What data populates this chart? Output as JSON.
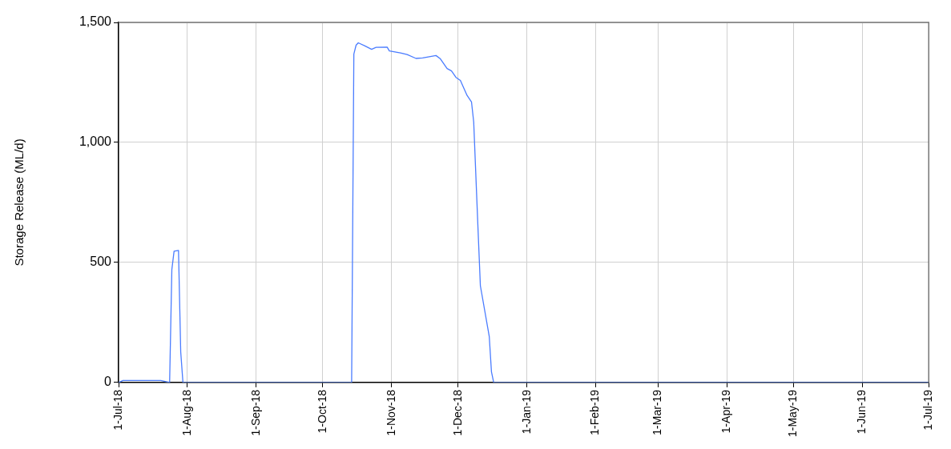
{
  "chart_data": {
    "type": "line",
    "ylabel": "Storage Release (ML/d)",
    "x": [
      "2018-07-01",
      "2018-07-03",
      "2018-07-20",
      "2018-07-24",
      "2018-07-25",
      "2018-07-26",
      "2018-07-28",
      "2018-07-29",
      "2018-07-30",
      "2018-10-14",
      "2018-10-15",
      "2018-10-16",
      "2018-10-17",
      "2018-10-20",
      "2018-10-23",
      "2018-10-25",
      "2018-10-30",
      "2018-10-31",
      "2018-11-05",
      "2018-11-08",
      "2018-11-12",
      "2018-11-15",
      "2018-11-21",
      "2018-11-23",
      "2018-11-26",
      "2018-11-28",
      "2018-11-30",
      "2018-12-02",
      "2018-12-05",
      "2018-12-07",
      "2018-12-08",
      "2018-12-10",
      "2018-12-11",
      "2018-12-15",
      "2018-12-16",
      "2018-12-17",
      "2019-07-01"
    ],
    "series": [
      {
        "color": "#4a7cff",
        "values": [
          0,
          8,
          8,
          0,
          470,
          547,
          550,
          127,
          0,
          0,
          1368,
          1405,
          1415,
          1402,
          1388,
          1396,
          1397,
          1381,
          1373,
          1366,
          1350,
          1352,
          1362,
          1348,
          1308,
          1298,
          1271,
          1258,
          1196,
          1169,
          1085,
          626,
          403,
          192,
          44,
          0,
          0
        ]
      }
    ],
    "xlim": [
      "2018-07-01",
      "2019-07-01"
    ],
    "xticks": [
      {
        "value": "2018-07-01",
        "label": "1-Jul-18"
      },
      {
        "value": "2018-08-01",
        "label": "1-Aug-18"
      },
      {
        "value": "2018-09-01",
        "label": "1-Sep-18"
      },
      {
        "value": "2018-10-01",
        "label": "1-Oct-18"
      },
      {
        "value": "2018-11-01",
        "label": "1-Nov-18"
      },
      {
        "value": "2018-12-01",
        "label": "1-Dec-18"
      },
      {
        "value": "2019-01-01",
        "label": "1-Jan-19"
      },
      {
        "value": "2019-02-01",
        "label": "1-Feb-19"
      },
      {
        "value": "2019-03-01",
        "label": "1-Mar-19"
      },
      {
        "value": "2019-04-01",
        "label": "1-Apr-19"
      },
      {
        "value": "2019-05-01",
        "label": "1-May-19"
      },
      {
        "value": "2019-06-01",
        "label": "1-Jun-19"
      },
      {
        "value": "2019-07-01",
        "label": "1-Jul-19"
      }
    ],
    "ylim": [
      0,
      1500
    ],
    "yticks": [
      0,
      {
        "value": 500,
        "label": "500"
      },
      {
        "value": 1000,
        "label": "1,000"
      },
      {
        "value": 1500,
        "label": "1,500"
      }
    ],
    "grid": true,
    "legend": false,
    "marker": "none",
    "line_style": "solid"
  }
}
